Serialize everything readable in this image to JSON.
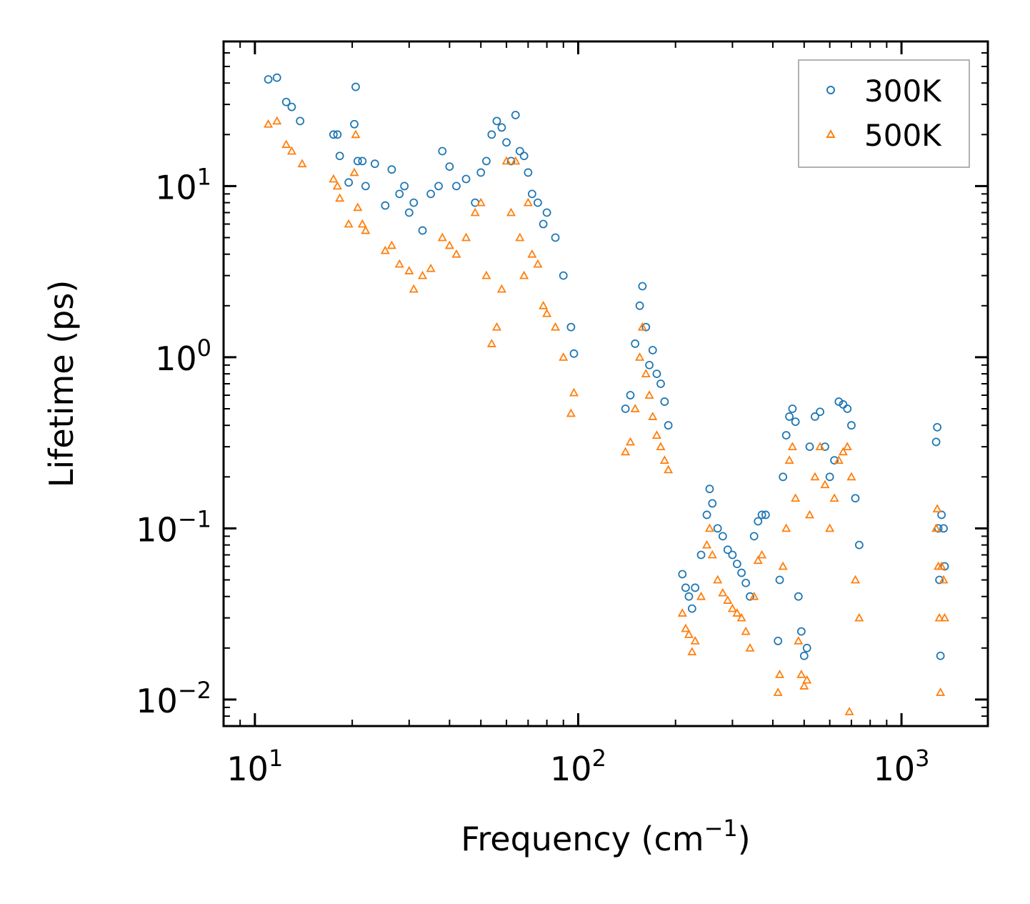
{
  "chart_data": {
    "type": "scatter",
    "title": "",
    "xlabel": "Frequency (cm",
    "xlabel_sup": "−1",
    "xlabel_suffix": ")",
    "ylabel": "Lifetime (ps)",
    "xscale": "log",
    "yscale": "log",
    "xlim": [
      8,
      1850
    ],
    "ylim": [
      0.007,
      70
    ],
    "x_ticks": [
      {
        "value": 10,
        "base": "10",
        "exp": "1"
      },
      {
        "value": 100,
        "base": "10",
        "exp": "2"
      },
      {
        "value": 1000,
        "base": "10",
        "exp": "3"
      }
    ],
    "y_ticks": [
      {
        "value": 0.01,
        "base": "10",
        "exp": "−2"
      },
      {
        "value": 0.1,
        "base": "10",
        "exp": "−1"
      },
      {
        "value": 1,
        "base": "10",
        "exp": "0"
      },
      {
        "value": 10,
        "base": "10",
        "exp": "1"
      }
    ],
    "legend_position": "top-right",
    "series": [
      {
        "name": "300K",
        "marker": "circle",
        "color": "#1f77b4",
        "points": [
          [
            11,
            42
          ],
          [
            11.7,
            43
          ],
          [
            12.5,
            31
          ],
          [
            13,
            29
          ],
          [
            13.8,
            24
          ],
          [
            17.5,
            20
          ],
          [
            18,
            20
          ],
          [
            18.3,
            15
          ],
          [
            19.5,
            10.5
          ],
          [
            20.3,
            23
          ],
          [
            20.5,
            38
          ],
          [
            20.8,
            14
          ],
          [
            21.5,
            14
          ],
          [
            22,
            10
          ],
          [
            23.5,
            13.5
          ],
          [
            25.3,
            7.7
          ],
          [
            26.5,
            12.5
          ],
          [
            28,
            9
          ],
          [
            29,
            10
          ],
          [
            30,
            7
          ],
          [
            31,
            8
          ],
          [
            33,
            5.5
          ],
          [
            35,
            9
          ],
          [
            37,
            10
          ],
          [
            38,
            16
          ],
          [
            40,
            13
          ],
          [
            42,
            10
          ],
          [
            45,
            11
          ],
          [
            48,
            8
          ],
          [
            50,
            12
          ],
          [
            52,
            14
          ],
          [
            54,
            20
          ],
          [
            56,
            24
          ],
          [
            58,
            22
          ],
          [
            60,
            18
          ],
          [
            62,
            14
          ],
          [
            64,
            26
          ],
          [
            66,
            16
          ],
          [
            68,
            15
          ],
          [
            70,
            12
          ],
          [
            72,
            9
          ],
          [
            75,
            8
          ],
          [
            78,
            6
          ],
          [
            80,
            7
          ],
          [
            85,
            5
          ],
          [
            90,
            3
          ],
          [
            95,
            1.5
          ],
          [
            97,
            1.05
          ],
          [
            140,
            0.5
          ],
          [
            145,
            0.6
          ],
          [
            150,
            1.2
          ],
          [
            155,
            2.0
          ],
          [
            158,
            2.6
          ],
          [
            162,
            1.5
          ],
          [
            166,
            0.9
          ],
          [
            170,
            1.1
          ],
          [
            175,
            0.8
          ],
          [
            180,
            0.7
          ],
          [
            185,
            0.55
          ],
          [
            190,
            0.4
          ],
          [
            210,
            0.054
          ],
          [
            215,
            0.045
          ],
          [
            220,
            0.04
          ],
          [
            225,
            0.034
          ],
          [
            230,
            0.045
          ],
          [
            240,
            0.07
          ],
          [
            250,
            0.12
          ],
          [
            255,
            0.17
          ],
          [
            260,
            0.14
          ],
          [
            270,
            0.1
          ],
          [
            280,
            0.09
          ],
          [
            290,
            0.075
          ],
          [
            300,
            0.07
          ],
          [
            310,
            0.062
          ],
          [
            320,
            0.055
          ],
          [
            330,
            0.048
          ],
          [
            340,
            0.04
          ],
          [
            350,
            0.09
          ],
          [
            360,
            0.11
          ],
          [
            370,
            0.12
          ],
          [
            380,
            0.12
          ],
          [
            415,
            0.022
          ],
          [
            420,
            0.05
          ],
          [
            430,
            0.2
          ],
          [
            440,
            0.35
          ],
          [
            450,
            0.45
          ],
          [
            460,
            0.5
          ],
          [
            470,
            0.42
          ],
          [
            480,
            0.04
          ],
          [
            490,
            0.025
          ],
          [
            500,
            0.018
          ],
          [
            510,
            0.02
          ],
          [
            520,
            0.3
          ],
          [
            540,
            0.45
          ],
          [
            560,
            0.48
          ],
          [
            580,
            0.3
          ],
          [
            600,
            0.2
          ],
          [
            620,
            0.25
          ],
          [
            640,
            0.55
          ],
          [
            660,
            0.53
          ],
          [
            680,
            0.5
          ],
          [
            700,
            0.4
          ],
          [
            720,
            0.15
          ],
          [
            740,
            0.08
          ],
          [
            1280,
            0.32
          ],
          [
            1290,
            0.39
          ],
          [
            1300,
            0.1
          ],
          [
            1310,
            0.05
          ],
          [
            1320,
            0.018
          ],
          [
            1330,
            0.12
          ],
          [
            1350,
            0.1
          ],
          [
            1360,
            0.06
          ]
        ]
      },
      {
        "name": "500K",
        "marker": "triangle",
        "color": "#ff7f0e",
        "points": [
          [
            11,
            23
          ],
          [
            11.7,
            24
          ],
          [
            12.5,
            17.5
          ],
          [
            13,
            16
          ],
          [
            14,
            13.5
          ],
          [
            17.5,
            11
          ],
          [
            18,
            10
          ],
          [
            18.3,
            8.5
          ],
          [
            19.5,
            6
          ],
          [
            20.3,
            12
          ],
          [
            20.5,
            20
          ],
          [
            20.8,
            7.5
          ],
          [
            21.5,
            6
          ],
          [
            22,
            5.5
          ],
          [
            25.3,
            4.2
          ],
          [
            26.5,
            4.5
          ],
          [
            28,
            3.5
          ],
          [
            30,
            3.2
          ],
          [
            31,
            2.5
          ],
          [
            33,
            3
          ],
          [
            35,
            3.3
          ],
          [
            38,
            5
          ],
          [
            40,
            4.5
          ],
          [
            42,
            4
          ],
          [
            45,
            5
          ],
          [
            48,
            7
          ],
          [
            50,
            8
          ],
          [
            52,
            3
          ],
          [
            54,
            1.2
          ],
          [
            56,
            1.5
          ],
          [
            58,
            2.5
          ],
          [
            60,
            14
          ],
          [
            62,
            7
          ],
          [
            64,
            14
          ],
          [
            66,
            5
          ],
          [
            68,
            3
          ],
          [
            70,
            8
          ],
          [
            72,
            4
          ],
          [
            75,
            3.5
          ],
          [
            78,
            2
          ],
          [
            80,
            1.8
          ],
          [
            85,
            1.5
          ],
          [
            90,
            1
          ],
          [
            95,
            0.47
          ],
          [
            97,
            0.62
          ],
          [
            140,
            0.28
          ],
          [
            145,
            0.32
          ],
          [
            150,
            0.5
          ],
          [
            155,
            1.0
          ],
          [
            158,
            1.5
          ],
          [
            162,
            0.8
          ],
          [
            166,
            0.6
          ],
          [
            170,
            0.45
          ],
          [
            175,
            0.35
          ],
          [
            180,
            0.3
          ],
          [
            185,
            0.25
          ],
          [
            190,
            0.22
          ],
          [
            210,
            0.032
          ],
          [
            215,
            0.026
          ],
          [
            220,
            0.024
          ],
          [
            225,
            0.019
          ],
          [
            230,
            0.022
          ],
          [
            240,
            0.04
          ],
          [
            250,
            0.08
          ],
          [
            255,
            0.1
          ],
          [
            260,
            0.07
          ],
          [
            270,
            0.05
          ],
          [
            280,
            0.042
          ],
          [
            290,
            0.038
          ],
          [
            300,
            0.034
          ],
          [
            310,
            0.032
          ],
          [
            320,
            0.03
          ],
          [
            330,
            0.025
          ],
          [
            340,
            0.02
          ],
          [
            350,
            0.04
          ],
          [
            360,
            0.065
          ],
          [
            370,
            0.07
          ],
          [
            415,
            0.011
          ],
          [
            420,
            0.014
          ],
          [
            430,
            0.06
          ],
          [
            440,
            0.1
          ],
          [
            450,
            0.25
          ],
          [
            460,
            0.3
          ],
          [
            470,
            0.15
          ],
          [
            480,
            0.022
          ],
          [
            490,
            0.014
          ],
          [
            500,
            0.012
          ],
          [
            510,
            0.013
          ],
          [
            520,
            0.12
          ],
          [
            540,
            0.2
          ],
          [
            560,
            0.3
          ],
          [
            580,
            0.18
          ],
          [
            600,
            0.1
          ],
          [
            620,
            0.15
          ],
          [
            640,
            0.25
          ],
          [
            660,
            0.28
          ],
          [
            680,
            0.3
          ],
          [
            690,
            0.0085
          ],
          [
            700,
            0.2
          ],
          [
            720,
            0.05
          ],
          [
            740,
            0.03
          ],
          [
            1280,
            0.1
          ],
          [
            1290,
            0.13
          ],
          [
            1300,
            0.06
          ],
          [
            1310,
            0.03
          ],
          [
            1320,
            0.011
          ],
          [
            1330,
            0.06
          ],
          [
            1350,
            0.05
          ],
          [
            1360,
            0.03
          ]
        ]
      }
    ]
  }
}
